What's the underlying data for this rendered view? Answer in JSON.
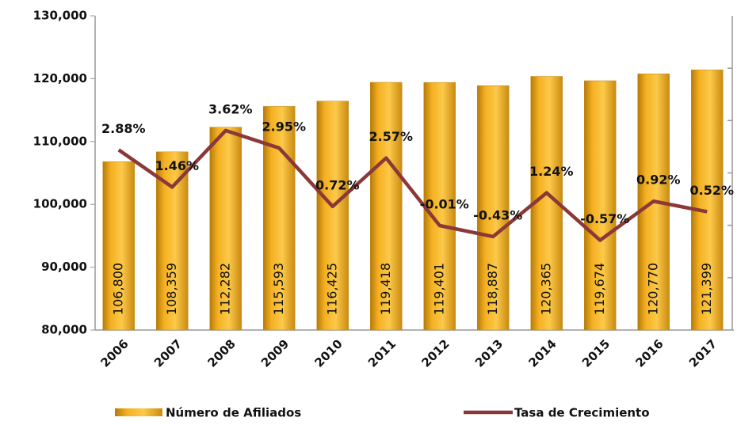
{
  "chart_data": {
    "type": "bar_line",
    "categories": [
      "2006",
      "2007",
      "2008",
      "2009",
      "2010",
      "2011",
      "2012",
      "2013",
      "2014",
      "2015",
      "2016",
      "2017"
    ],
    "series": [
      {
        "name": "Número de Afiliados",
        "color": "#f4b021",
        "values": [
          106800,
          108359,
          112282,
          115593,
          116425,
          119418,
          119401,
          118887,
          120365,
          119674,
          120770,
          121399
        ],
        "value_labels": [
          "106,800",
          "108,359",
          "112,282",
          "115,593",
          "116,425",
          "119,418",
          "119,401",
          "118,887",
          "120,365",
          "119,674",
          "120,770",
          "121,399"
        ]
      },
      {
        "name": "Tasa de Crecimiento",
        "color": "#8b3838",
        "axis": "y2",
        "values": [
          2.88,
          1.46,
          3.62,
          2.95,
          0.72,
          2.57,
          -0.01,
          -0.43,
          1.24,
          -0.57,
          0.92,
          0.52
        ],
        "value_labels": [
          "2.88%",
          "1.46%",
          "3.62%",
          "2.95%",
          "0.72%",
          "2.57%",
          "-0.01%",
          "-0.43%",
          "1.24%",
          "-0.57%",
          "0.92%",
          "0.52%"
        ]
      }
    ],
    "ylim": [
      80000,
      130000
    ],
    "yticks": [
      {
        "value": 80000,
        "label": "80,000"
      },
      {
        "value": 90000,
        "label": "90,000"
      },
      {
        "value": 100000,
        "label": "100,000"
      },
      {
        "value": 110000,
        "label": "110,000"
      },
      {
        "value": 120000,
        "label": "120,000"
      },
      {
        "value": 130000,
        "label": "130,000"
      }
    ],
    "y2lim": [
      -4,
      8
    ],
    "y2ticks": [
      -2,
      0,
      2,
      4,
      6
    ],
    "legend": "bottom"
  }
}
